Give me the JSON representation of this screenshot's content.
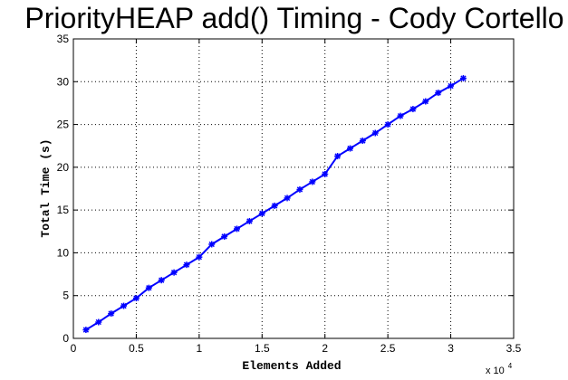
{
  "chart_data": {
    "type": "line",
    "title": "PriorityHEAP add() Timing - Cody Cortello",
    "xlabel": "Elements Added",
    "ylabel": "Total Time (s)",
    "x_multiplier": "x 10",
    "x_multiplier_exp": "4",
    "xlim": [
      0,
      35000
    ],
    "ylim": [
      0,
      35
    ],
    "xticks": [
      0,
      5000,
      10000,
      15000,
      20000,
      25000,
      30000,
      35000
    ],
    "xtick_labels": [
      "0",
      "0.5",
      "1",
      "1.5",
      "2",
      "2.5",
      "3",
      "3.5"
    ],
    "yticks": [
      0,
      5,
      10,
      15,
      20,
      25,
      30,
      35
    ],
    "ytick_labels": [
      "0",
      "5",
      "10",
      "15",
      "20",
      "25",
      "30",
      "35"
    ],
    "grid": true,
    "series": [
      {
        "color": "#0000ff",
        "marker": "*",
        "x": [
          1000,
          2000,
          3000,
          4000,
          5000,
          6000,
          7000,
          8000,
          9000,
          10000,
          11000,
          12000,
          13000,
          14000,
          15000,
          16000,
          17000,
          18000,
          19000,
          20000,
          21000,
          22000,
          23000,
          24000,
          25000,
          26000,
          27000,
          28000,
          29000,
          30000,
          31000
        ],
        "y": [
          1.0,
          1.9,
          2.9,
          3.8,
          4.7,
          5.9,
          6.8,
          7.7,
          8.6,
          9.5,
          11.0,
          11.9,
          12.8,
          13.7,
          14.6,
          15.5,
          16.4,
          17.4,
          18.3,
          19.2,
          21.3,
          22.2,
          23.1,
          24.0,
          25.0,
          26.0,
          26.8,
          27.7,
          28.7,
          29.5,
          30.4
        ]
      }
    ]
  }
}
